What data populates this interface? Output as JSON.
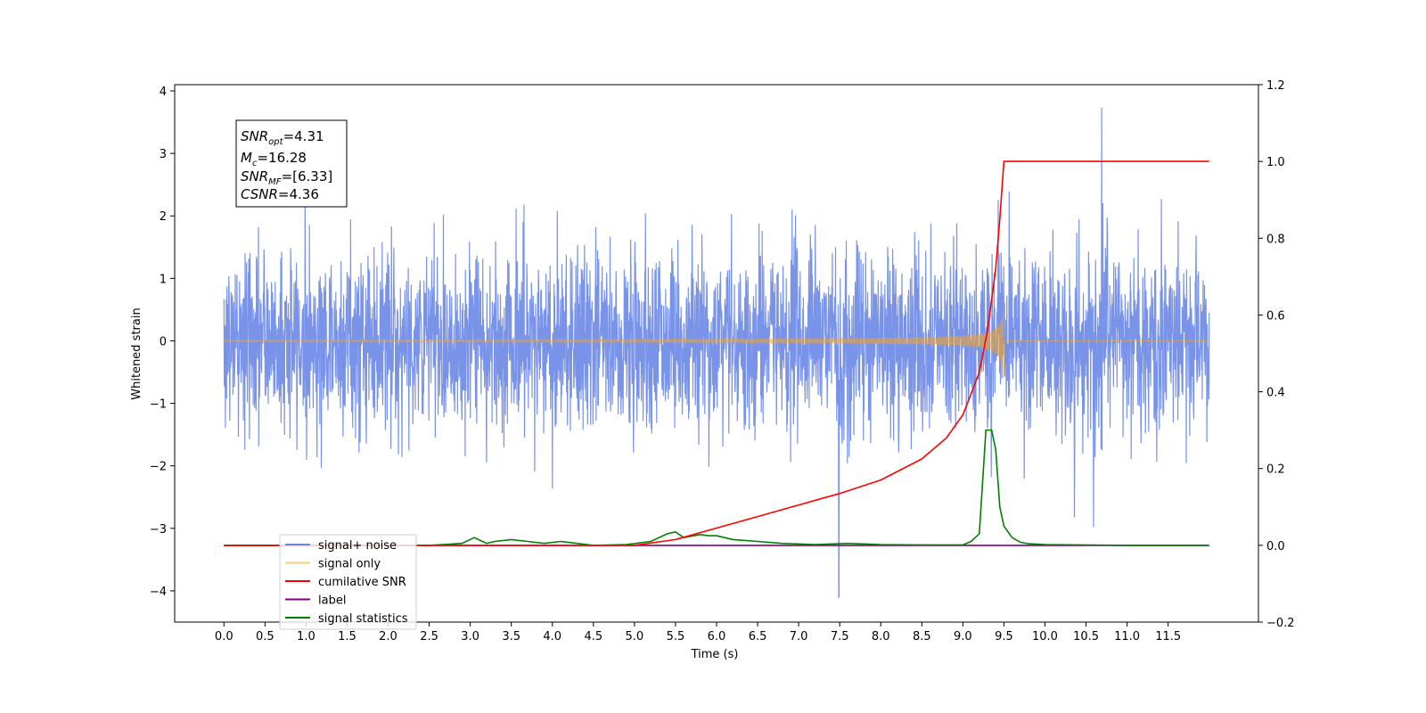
{
  "chart_data": {
    "type": "line",
    "title": "",
    "xlabel": "Time (s)",
    "ylabel": "Whitened strain",
    "xlim": [
      -0.6,
      12.6
    ],
    "ylim": [
      -4.5,
      4.1
    ],
    "y2lim": [
      -0.2,
      1.2
    ],
    "x_ticks": [
      "0.0",
      "0.5",
      "1.0",
      "1.5",
      "2.0",
      "2.5",
      "3.0",
      "3.5",
      "4.0",
      "4.5",
      "5.0",
      "5.5",
      "6.0",
      "6.5",
      "7.0",
      "7.5",
      "8.0",
      "8.5",
      "9.0",
      "9.5",
      "10.0",
      "10.5",
      "11.0",
      "11.5"
    ],
    "y_ticks": [
      "4",
      "3",
      "2",
      "1",
      "0",
      "−1",
      "−2",
      "−3",
      "−4"
    ],
    "y2_ticks": [
      "1.2",
      "1.0",
      "0.8",
      "0.6",
      "0.4",
      "0.2",
      "0.0",
      "−0.2"
    ],
    "grid": false,
    "legend_position": "bottom-left",
    "series": [
      {
        "name": "signal+ noise",
        "axis": "left",
        "color": "#6a87e6",
        "description_values": {
          "t_start": 0.0,
          "t_end": 12.0,
          "typical_band": [
            -1.5,
            1.5
          ],
          "max": 3.73,
          "min": -4.1
        }
      },
      {
        "name": "signal only",
        "axis": "left",
        "color": "#f5a623",
        "description_values": {
          "t_start": 0.0,
          "t_end": 12.0,
          "merger_time": 9.5,
          "peak_amplitude": 0.65
        }
      },
      {
        "name": "cumilative SNR",
        "axis": "right",
        "color": "#ff0000",
        "x": [
          0.0,
          5.0,
          5.5,
          6.0,
          6.5,
          7.0,
          7.5,
          8.0,
          8.5,
          8.8,
          9.0,
          9.2,
          9.3,
          9.4,
          9.45,
          9.5,
          10.0,
          11.0,
          12.0
        ],
        "y": [
          0.0,
          0.0,
          0.015,
          0.045,
          0.075,
          0.105,
          0.135,
          0.17,
          0.225,
          0.28,
          0.34,
          0.45,
          0.56,
          0.72,
          0.85,
          1.0,
          1.0,
          1.0,
          1.0
        ]
      },
      {
        "name": "label",
        "axis": "right",
        "color": "#800080",
        "x": [
          0.0,
          12.0
        ],
        "y": [
          0.0,
          0.0
        ]
      },
      {
        "name": "signal statistics",
        "axis": "right",
        "color": "#008000",
        "x": [
          0.0,
          2.5,
          2.9,
          3.05,
          3.1,
          3.2,
          3.3,
          3.5,
          3.7,
          3.9,
          4.1,
          4.3,
          4.5,
          4.9,
          5.2,
          5.4,
          5.5,
          5.6,
          5.8,
          5.9,
          6.0,
          6.2,
          6.5,
          6.8,
          7.2,
          7.6,
          8.0,
          8.5,
          9.0,
          9.1,
          9.2,
          9.28,
          9.35,
          9.4,
          9.45,
          9.5,
          9.6,
          9.7,
          9.8,
          10.0,
          11.0,
          12.0
        ],
        "y": [
          0.0,
          0.0,
          0.005,
          0.02,
          0.015,
          0.005,
          0.01,
          0.015,
          0.01,
          0.005,
          0.01,
          0.005,
          0.0,
          0.002,
          0.01,
          0.03,
          0.035,
          0.02,
          0.028,
          0.025,
          0.025,
          0.015,
          0.01,
          0.005,
          0.002,
          0.005,
          0.002,
          0.001,
          0.001,
          0.01,
          0.03,
          0.3,
          0.3,
          0.25,
          0.1,
          0.05,
          0.02,
          0.008,
          0.004,
          0.002,
          0.0,
          0.0
        ]
      }
    ],
    "annotation": {
      "snr_opt": "4.31",
      "mc": "16.28",
      "snr_mf": "[6.33]",
      "csnr": "4.36"
    }
  }
}
